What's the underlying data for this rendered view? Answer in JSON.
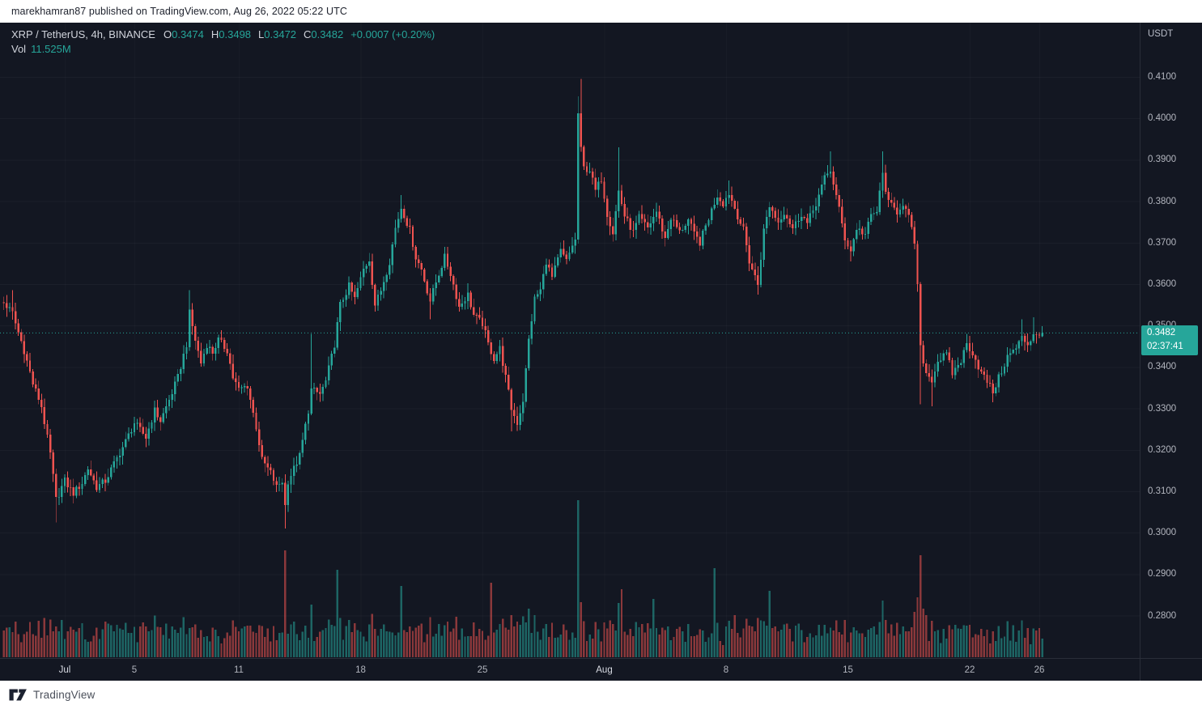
{
  "attribution": {
    "text": "marekhamran87 published on TradingView.com, Aug 26, 2022 05:22 UTC"
  },
  "header": {
    "title": "XRP / TetherUS, 4h, BINANCE",
    "ohlc": {
      "o_label": "O",
      "o": "0.3474",
      "h_label": "H",
      "h": "0.3498",
      "l_label": "L",
      "l": "0.3472",
      "c_label": "C",
      "c": "0.3482",
      "change": "+0.0007 (+0.20%)"
    },
    "vol_label": "Vol",
    "vol_value": "11.525M"
  },
  "price_axis": {
    "unit": "USDT",
    "price_tag": {
      "price": "0.3482",
      "countdown": "02:37:41"
    }
  },
  "footer": {
    "brand": "TradingView"
  },
  "chart_data": {
    "type": "candlestick",
    "symbol": "XRP / TetherUS",
    "exchange": "BINANCE",
    "interval": "4h",
    "volume_pane": true,
    "y_axis": {
      "unit": "USDT",
      "min": 0.28,
      "max": 0.41,
      "tick_step": 0.01,
      "ticks": [
        "0.4100",
        "0.4000",
        "0.3900",
        "0.3800",
        "0.3700",
        "0.3600",
        "0.3500",
        "0.3400",
        "0.3300",
        "0.3200",
        "0.3100",
        "0.3000",
        "0.2900",
        "0.2800"
      ]
    },
    "x_axis": {
      "candles_per_day": 6,
      "ticks": [
        {
          "i": 24,
          "label": "Jul",
          "major": true
        },
        {
          "i": 48,
          "label": "5"
        },
        {
          "i": 84,
          "label": "11"
        },
        {
          "i": 126,
          "label": "18"
        },
        {
          "i": 168,
          "label": "25"
        },
        {
          "i": 210,
          "label": "Aug",
          "major": true
        },
        {
          "i": 252,
          "label": "8"
        },
        {
          "i": 294,
          "label": "15"
        },
        {
          "i": 336,
          "label": "22"
        },
        {
          "i": 360,
          "label": "26"
        }
      ]
    },
    "last_candle": {
      "open": 0.3474,
      "high": 0.3498,
      "low": 0.3472,
      "close": 0.3482,
      "volume_label": "11.525M",
      "volume_m": 11.5
    },
    "price_line": {
      "price": 0.3482,
      "countdown": "02:37:41"
    },
    "series": {
      "first_index": 3,
      "last_index": 361,
      "close_path": [
        [
          3,
          0.3555
        ],
        [
          6,
          0.353
        ],
        [
          7,
          0.3505
        ],
        [
          10,
          0.344
        ],
        [
          13,
          0.336
        ],
        [
          16,
          0.3305
        ],
        [
          19,
          0.319
        ],
        [
          21,
          0.308
        ],
        [
          24,
          0.3125
        ],
        [
          27,
          0.3095
        ],
        [
          30,
          0.312
        ],
        [
          32,
          0.3155
        ],
        [
          35,
          0.311
        ],
        [
          38,
          0.3125
        ],
        [
          42,
          0.318
        ],
        [
          45,
          0.322
        ],
        [
          48,
          0.3265
        ],
        [
          52,
          0.323
        ],
        [
          55,
          0.3295
        ],
        [
          57,
          0.327
        ],
        [
          60,
          0.332
        ],
        [
          63,
          0.3375
        ],
        [
          66,
          0.3455
        ],
        [
          67,
          0.353
        ],
        [
          69,
          0.3465
        ],
        [
          71,
          0.341
        ],
        [
          73,
          0.3455
        ],
        [
          75,
          0.3435
        ],
        [
          77,
          0.3465
        ],
        [
          80,
          0.344
        ],
        [
          82,
          0.3375
        ],
        [
          84,
          0.3345
        ],
        [
          87,
          0.3355
        ],
        [
          90,
          0.3255
        ],
        [
          92,
          0.3175
        ],
        [
          95,
          0.3145
        ],
        [
          97,
          0.311
        ],
        [
          99,
          0.3125
        ],
        [
          100,
          0.3065
        ],
        [
          101,
          0.3125
        ],
        [
          105,
          0.3185
        ],
        [
          108,
          0.3295
        ],
        [
          109,
          0.3345
        ],
        [
          112,
          0.3335
        ],
        [
          114,
          0.3365
        ],
        [
          117,
          0.3455
        ],
        [
          119,
          0.355
        ],
        [
          122,
          0.3595
        ],
        [
          124,
          0.3565
        ],
        [
          127,
          0.3635
        ],
        [
          129,
          0.366
        ],
        [
          131,
          0.355
        ],
        [
          133,
          0.3585
        ],
        [
          136,
          0.3655
        ],
        [
          138,
          0.3735
        ],
        [
          140,
          0.3785
        ],
        [
          143,
          0.373
        ],
        [
          145,
          0.3665
        ],
        [
          147,
          0.3635
        ],
        [
          150,
          0.356
        ],
        [
          152,
          0.3605
        ],
        [
          155,
          0.3665
        ],
        [
          157,
          0.3625
        ],
        [
          160,
          0.3545
        ],
        [
          163,
          0.3575
        ],
        [
          165,
          0.3525
        ],
        [
          168,
          0.3505
        ],
        [
          170,
          0.3455
        ],
        [
          172,
          0.342
        ],
        [
          174,
          0.3445
        ],
        [
          176,
          0.3375
        ],
        [
          178,
          0.33
        ],
        [
          180,
          0.3265
        ],
        [
          182,
          0.332
        ],
        [
          184,
          0.3465
        ],
        [
          186,
          0.3565
        ],
        [
          188,
          0.3585
        ],
        [
          190,
          0.3655
        ],
        [
          192,
          0.3615
        ],
        [
          195,
          0.368
        ],
        [
          197,
          0.3655
        ],
        [
          199,
          0.3695
        ],
        [
          200,
          0.3705
        ],
        [
          201,
          0.4012
        ],
        [
          202,
          0.3924
        ],
        [
          203,
          0.388
        ],
        [
          205,
          0.3875
        ],
        [
          207,
          0.3825
        ],
        [
          209,
          0.3855
        ],
        [
          211,
          0.377
        ],
        [
          213,
          0.3725
        ],
        [
          215,
          0.3825
        ],
        [
          217,
          0.3765
        ],
        [
          220,
          0.3725
        ],
        [
          222,
          0.376
        ],
        [
          225,
          0.3735
        ],
        [
          228,
          0.3775
        ],
        [
          231,
          0.371
        ],
        [
          233,
          0.376
        ],
        [
          236,
          0.3725
        ],
        [
          239,
          0.3755
        ],
        [
          241,
          0.372
        ],
        [
          243,
          0.37
        ],
        [
          246,
          0.376
        ],
        [
          249,
          0.3815
        ],
        [
          251,
          0.3795
        ],
        [
          253,
          0.382
        ],
        [
          256,
          0.3765
        ],
        [
          258,
          0.373
        ],
        [
          260,
          0.3655
        ],
        [
          263,
          0.36
        ],
        [
          265,
          0.373
        ],
        [
          267,
          0.379
        ],
        [
          270,
          0.375
        ],
        [
          272,
          0.3775
        ],
        [
          275,
          0.3735
        ],
        [
          278,
          0.377
        ],
        [
          280,
          0.3745
        ],
        [
          283,
          0.3795
        ],
        [
          286,
          0.3855
        ],
        [
          288,
          0.3875
        ],
        [
          291,
          0.378
        ],
        [
          293,
          0.371
        ],
        [
          295,
          0.368
        ],
        [
          297,
          0.3735
        ],
        [
          300,
          0.372
        ],
        [
          302,
          0.3765
        ],
        [
          304,
          0.3775
        ],
        [
          306,
          0.3865
        ],
        [
          308,
          0.3795
        ],
        [
          311,
          0.3775
        ],
        [
          313,
          0.3795
        ],
        [
          315,
          0.376
        ],
        [
          317,
          0.37
        ],
        [
          318,
          0.3595
        ],
        [
          319,
          0.3445
        ],
        [
          321,
          0.3385
        ],
        [
          323,
          0.337
        ],
        [
          325,
          0.3415
        ],
        [
          328,
          0.343
        ],
        [
          330,
          0.3385
        ],
        [
          333,
          0.3415
        ],
        [
          335,
          0.3455
        ],
        [
          337,
          0.3435
        ],
        [
          340,
          0.3385
        ],
        [
          342,
          0.3365
        ],
        [
          344,
          0.334
        ],
        [
          347,
          0.339
        ],
        [
          349,
          0.3425
        ],
        [
          352,
          0.3445
        ],
        [
          354,
          0.347
        ],
        [
          356,
          0.3455
        ],
        [
          358,
          0.348
        ],
        [
          361,
          0.3482
        ]
      ],
      "extremes": [
        {
          "i": 6,
          "h": 0.3585
        },
        {
          "i": 21,
          "l": 0.3025
        },
        {
          "i": 67,
          "h": 0.3585
        },
        {
          "i": 100,
          "l": 0.301
        },
        {
          "i": 109,
          "h": 0.348
        },
        {
          "i": 140,
          "h": 0.3815
        },
        {
          "i": 150,
          "l": 0.3515
        },
        {
          "i": 178,
          "l": 0.3245
        },
        {
          "i": 201,
          "h": 0.4053,
          "l": 0.3698
        },
        {
          "i": 202,
          "h": 0.4095
        },
        {
          "i": 215,
          "h": 0.393
        },
        {
          "i": 253,
          "h": 0.385
        },
        {
          "i": 263,
          "l": 0.3575
        },
        {
          "i": 288,
          "h": 0.392
        },
        {
          "i": 295,
          "l": 0.3655
        },
        {
          "i": 306,
          "h": 0.392
        },
        {
          "i": 319,
          "l": 0.331
        },
        {
          "i": 323,
          "l": 0.3305
        },
        {
          "i": 335,
          "h": 0.348
        },
        {
          "i": 344,
          "l": 0.3315
        },
        {
          "i": 354,
          "h": 0.3515
        },
        {
          "i": 358,
          "h": 0.352
        }
      ],
      "volume_spikes_m": [
        [
          20,
          16
        ],
        [
          21,
          19
        ],
        [
          41,
          16
        ],
        [
          44,
          17
        ],
        [
          47,
          15
        ],
        [
          63,
          15
        ],
        [
          67,
          18
        ],
        [
          100,
          66
        ],
        [
          103,
          22
        ],
        [
          118,
          54
        ],
        [
          140,
          44
        ],
        [
          171,
          46
        ],
        [
          184,
          30
        ],
        [
          186,
          26
        ],
        [
          201,
          97
        ],
        [
          202,
          34
        ],
        [
          216,
          42
        ],
        [
          227,
          36
        ],
        [
          248,
          55
        ],
        [
          255,
          26
        ],
        [
          267,
          41
        ],
        [
          286,
          20
        ],
        [
          306,
          35
        ],
        [
          317,
          28
        ],
        [
          318,
          37
        ],
        [
          319,
          63
        ],
        [
          320,
          30
        ],
        [
          321,
          26
        ],
        [
          361,
          11.5
        ]
      ]
    },
    "colors": {
      "up": "#26a69a",
      "down": "#ef5350",
      "volume_up": "rgba(38,166,154,0.55)",
      "volume_down": "rgba(239,83,80,0.55)",
      "price_line": "#26a69a",
      "price_tag_bg": "#26a69a",
      "background": "#131722",
      "grid": "rgba(178,181,190,0.055)",
      "axis_text": "#b2b5be",
      "axis_border": "#2a2e39"
    }
  }
}
